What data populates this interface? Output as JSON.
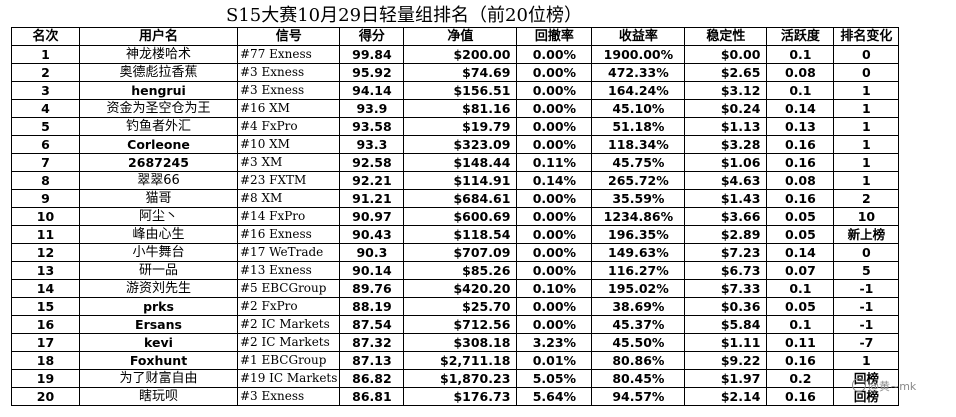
{
  "title": "S15大赛10月29日轻量组排名（前20位榜）",
  "headers": [
    "名次",
    "用户名",
    "信号",
    "得分",
    "净值",
    "回撤率",
    "收益率",
    "稳定性",
    "活跃度",
    "排名变化"
  ],
  "rows": [
    [
      "1",
      "神龙楼哈术",
      "#77 Exness",
      "99.84",
      "$200.00",
      "0.00%",
      "1900.00%",
      "$0.00",
      "0.1",
      "0"
    ],
    [
      "2",
      "奥德彪拉香蕉",
      "#3 Exness",
      "95.92",
      "$74.69",
      "0.00%",
      "472.33%",
      "$2.65",
      "0.08",
      "0"
    ],
    [
      "3",
      "hengrui",
      "#3 Exness",
      "94.14",
      "$156.51",
      "0.00%",
      "164.24%",
      "$3.12",
      "0.1",
      "1"
    ],
    [
      "4",
      "资金为圣空仓为王",
      "#16 XM",
      "93.9",
      "$81.16",
      "0.00%",
      "45.10%",
      "$0.24",
      "0.14",
      "1"
    ],
    [
      "5",
      "钓鱼者外汇",
      "#4 FxPro",
      "93.58",
      "$19.79",
      "0.00%",
      "51.18%",
      "$1.13",
      "0.13",
      "1"
    ],
    [
      "6",
      "Corleone",
      "#10 XM",
      "93.3",
      "$323.09",
      "0.00%",
      "118.34%",
      "$3.28",
      "0.16",
      "1"
    ],
    [
      "7",
      "2687245",
      "#3 XM",
      "92.58",
      "$148.44",
      "0.11%",
      "45.75%",
      "$1.06",
      "0.16",
      "1"
    ],
    [
      "8",
      "翠翠66",
      "#23 FXTM",
      "92.21",
      "$114.91",
      "0.14%",
      "265.72%",
      "$4.63",
      "0.08",
      "1"
    ],
    [
      "9",
      "猫哥",
      "#8 XM",
      "91.21",
      "$684.61",
      "0.00%",
      "35.59%",
      "$1.43",
      "0.16",
      "2"
    ],
    [
      "10",
      "阿尘丶",
      "#14 FxPro",
      "90.97",
      "$600.69",
      "0.00%",
      "1234.86%",
      "$3.66",
      "0.05",
      "10"
    ],
    [
      "11",
      "峰由心生",
      "#16 Exness",
      "90.43",
      "$118.54",
      "0.00%",
      "196.35%",
      "$2.89",
      "0.05",
      "新上榜"
    ],
    [
      "12",
      "小牛舞台",
      "#17 WeTrade",
      "90.3",
      "$707.09",
      "0.00%",
      "149.63%",
      "$7.23",
      "0.14",
      "0"
    ],
    [
      "13",
      "研一品",
      "#13 Exness",
      "90.14",
      "$85.26",
      "0.00%",
      "116.27%",
      "$6.73",
      "0.07",
      "5"
    ],
    [
      "14",
      "游资刘先生",
      "#5 EBCGroup",
      "89.76",
      "$420.20",
      "0.10%",
      "195.02%",
      "$7.33",
      "0.1",
      "-1"
    ],
    [
      "15",
      "prks",
      "#2 FxPro",
      "88.19",
      "$25.70",
      "0.00%",
      "38.69%",
      "$0.36",
      "0.05",
      "-1"
    ],
    [
      "16",
      "Ersans",
      "#2 IC Markets",
      "87.54",
      "$712.56",
      "0.00%",
      "45.37%",
      "$5.84",
      "0.1",
      "-1"
    ],
    [
      "17",
      "kevi",
      "#2 IC Markets",
      "87.32",
      "$308.18",
      "3.23%",
      "45.50%",
      "$1.11",
      "0.11",
      "-7"
    ],
    [
      "18",
      "Foxhunt",
      "#1 EBCGroup",
      "87.13",
      "$2,711.18",
      "0.01%",
      "80.86%",
      "$9.22",
      "0.16",
      "1"
    ],
    [
      "19",
      "为了财富自由",
      "#19 IC Markets",
      "86.82",
      "$1,870.23",
      "5.05%",
      "80.45%",
      "$1.97",
      "0.2",
      "回榜"
    ],
    [
      "20",
      "瞎玩呗",
      "#3 Exness",
      "86.81",
      "$176.73",
      "5.64%",
      "94.57%",
      "$2.14",
      "0.16",
      "回榜"
    ]
  ],
  "watermark": "@黄~mk"
}
